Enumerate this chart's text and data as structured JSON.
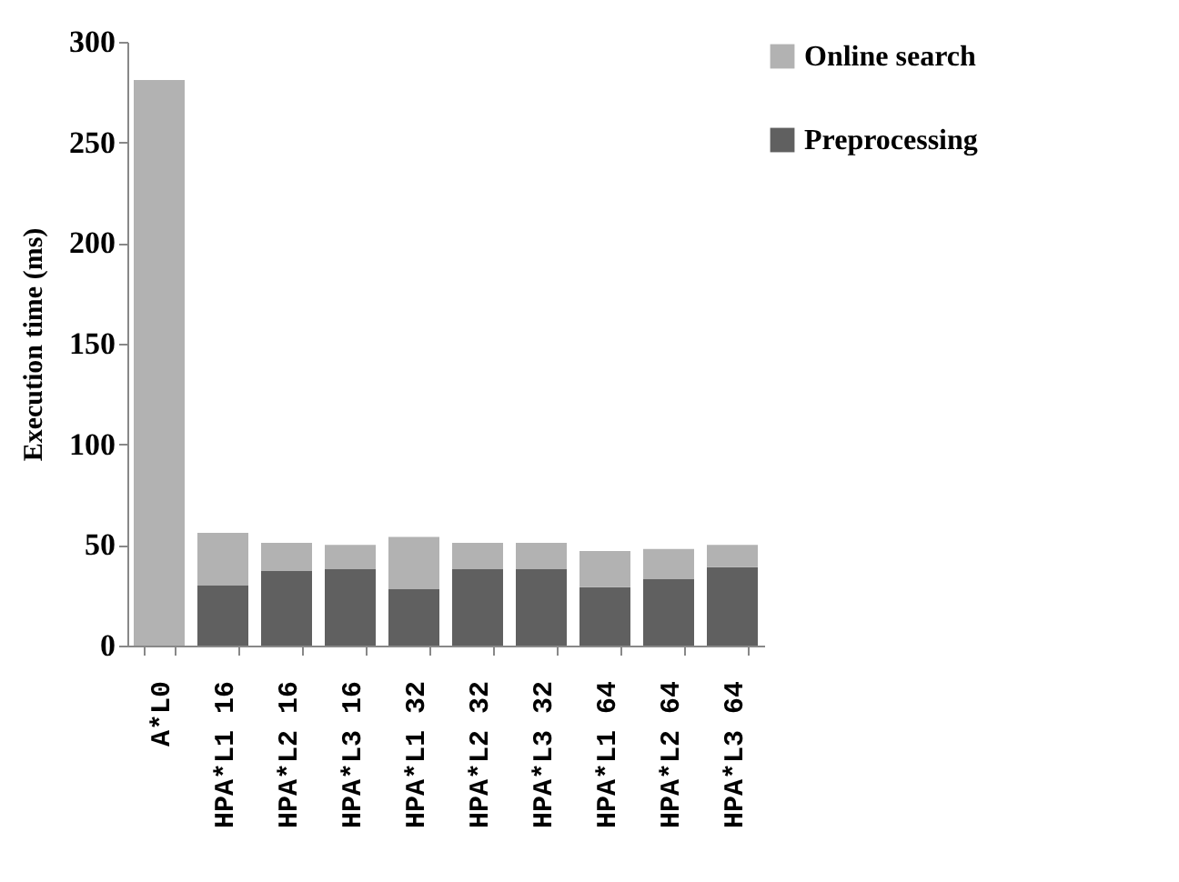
{
  "chart_data": {
    "type": "bar",
    "stacked": true,
    "ylabel": "Execution time (ms)",
    "categories": [
      "A*L0",
      "HPA*L1 16",
      "HPA*L2 16",
      "HPA*L3 16",
      "HPA*L1 32",
      "HPA*L2 32",
      "HPA*L3 32",
      "HPA*L1 64",
      "HPA*L2 64",
      "HPA*L3 64"
    ],
    "series": [
      {
        "name": "Preprocessing",
        "color": "#606060",
        "values": [
          0,
          30,
          37,
          38,
          28,
          38,
          38,
          29,
          33,
          39
        ]
      },
      {
        "name": "Online search",
        "color": "#b2b2b2",
        "values": [
          281,
          26,
          14,
          12,
          26,
          13,
          13,
          18,
          15,
          11
        ]
      }
    ],
    "ylim": [
      0,
      300
    ],
    "yticks": [
      0,
      50,
      100,
      150,
      200,
      250,
      300
    ],
    "grid": false,
    "legend": "right"
  }
}
